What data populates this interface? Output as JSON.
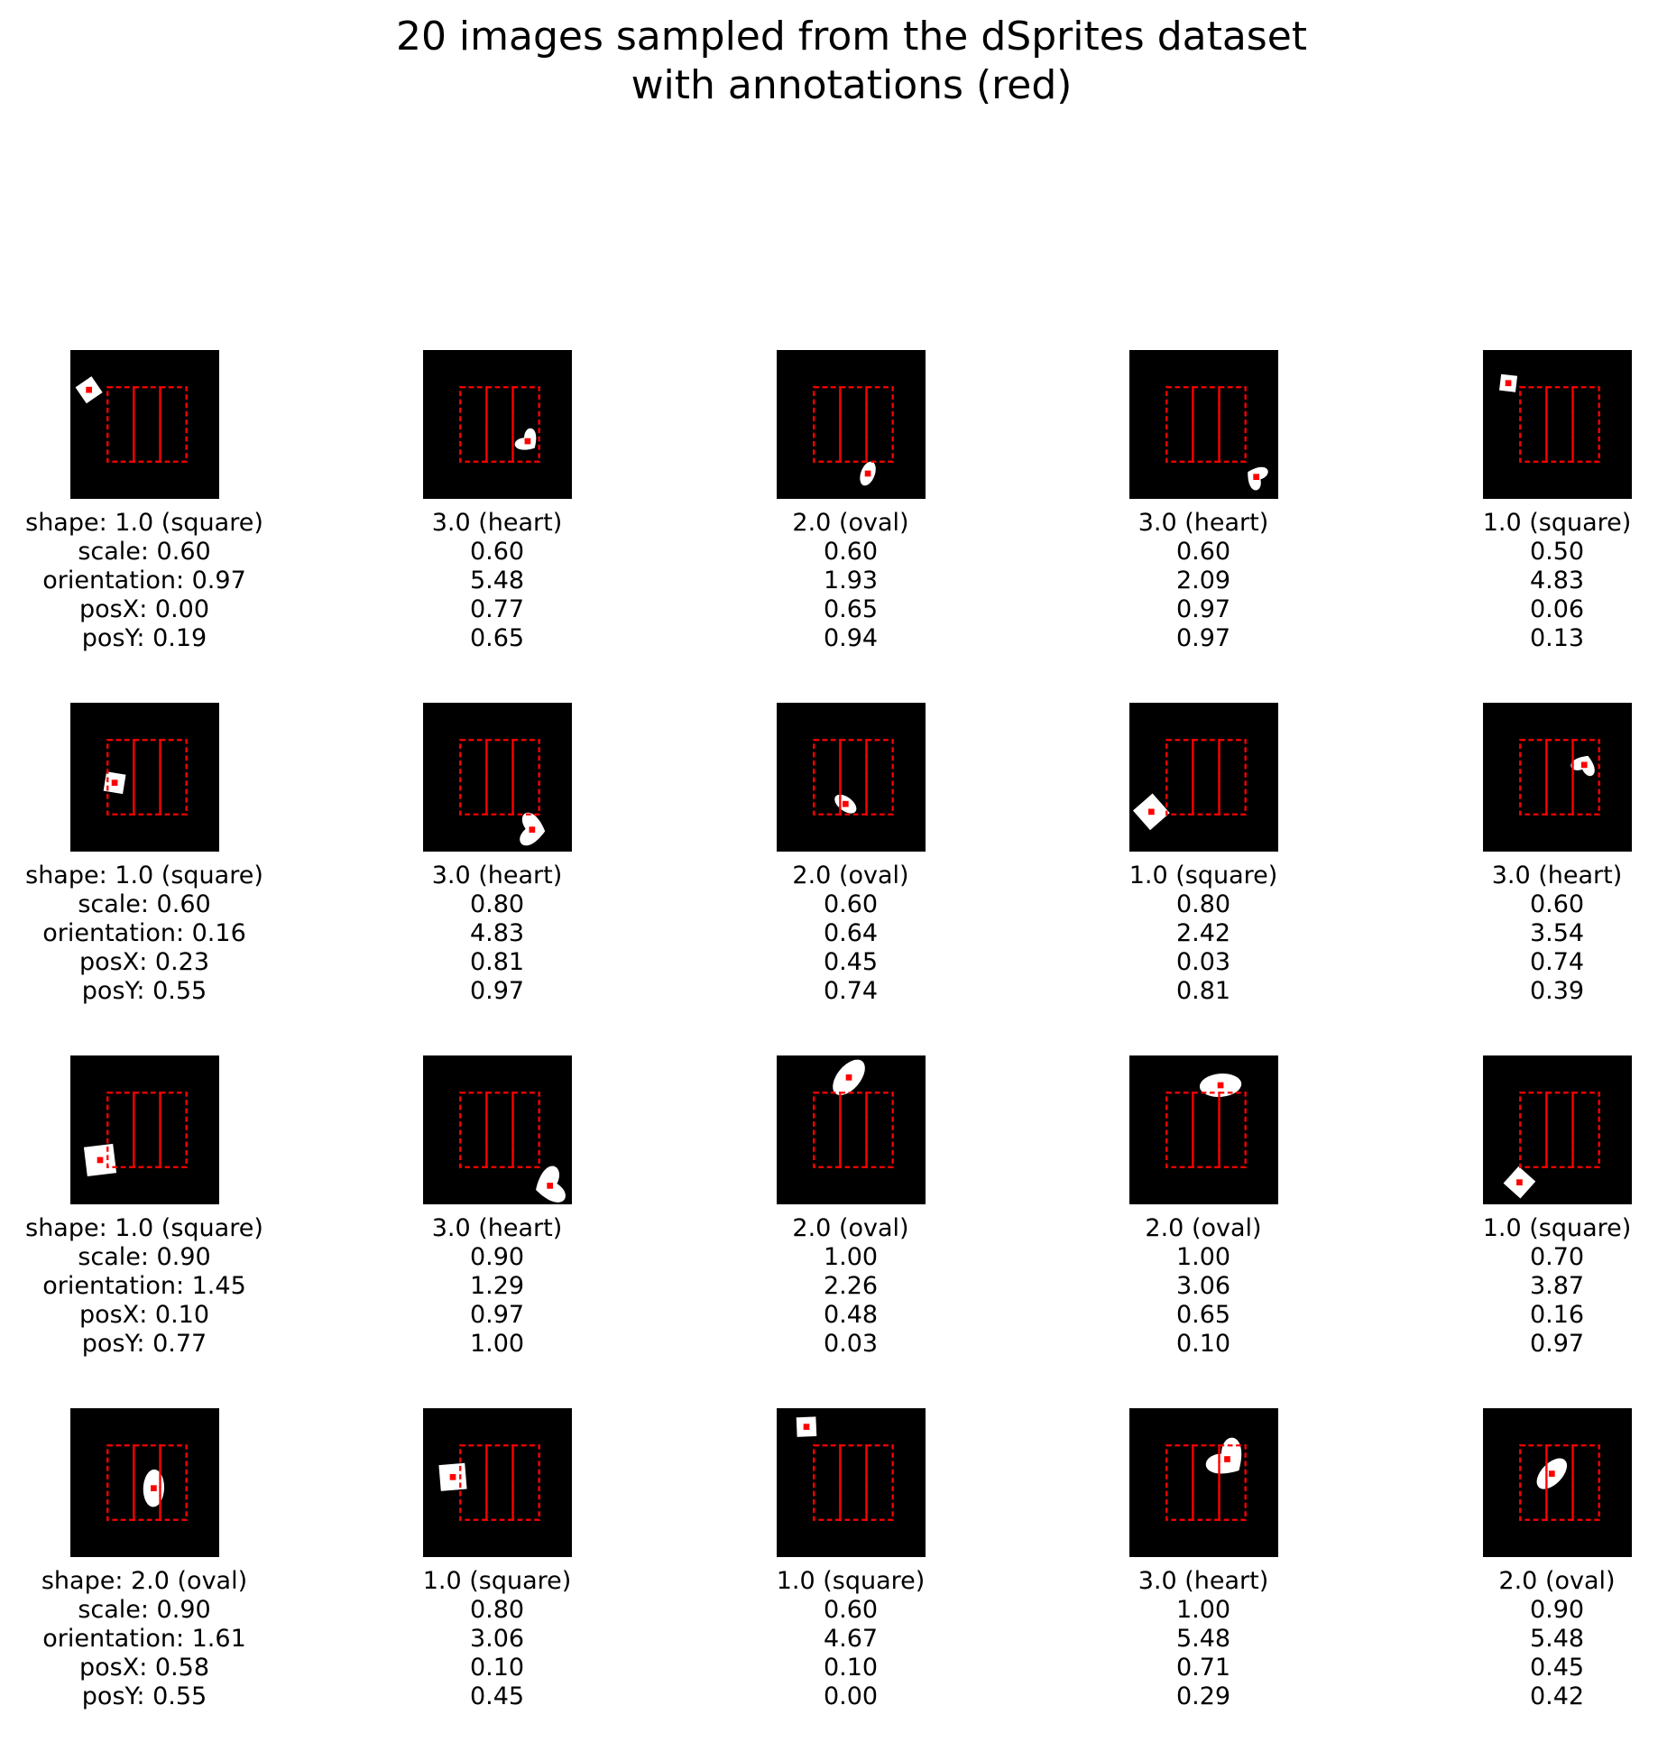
{
  "title": {
    "line1": "20 images sampled from the dSprites dataset",
    "line2": "with annotations (red)"
  },
  "colors": {
    "background": "#ffffff",
    "sprite_canvas": "#000000",
    "sprite": "#ffffff",
    "annotation": "#ff0000"
  },
  "samples": [
    {
      "shape_label": "shape: 1.0 (square)",
      "scale_label": "scale: 0.60",
      "orientation_label": "orientation: 0.97",
      "posx_label": "posX: 0.00",
      "posy_label": "posY: 0.19",
      "shape_id": 1.0,
      "shape_name": "square",
      "scale": 0.6,
      "orientation": 0.97,
      "posX": 0.0,
      "posY": 0.19
    },
    {
      "shape_label": "3.0 (heart)",
      "scale_label": "0.60",
      "orientation_label": "5.48",
      "posx_label": "0.77",
      "posy_label": "0.65",
      "shape_id": 3.0,
      "shape_name": "heart",
      "scale": 0.6,
      "orientation": 5.48,
      "posX": 0.77,
      "posY": 0.65
    },
    {
      "shape_label": "2.0 (oval)",
      "scale_label": "0.60",
      "orientation_label": "1.93",
      "posx_label": "0.65",
      "posy_label": "0.94",
      "shape_id": 2.0,
      "shape_name": "oval",
      "scale": 0.6,
      "orientation": 1.93,
      "posX": 0.65,
      "posY": 0.94
    },
    {
      "shape_label": "3.0 (heart)",
      "scale_label": "0.60",
      "orientation_label": "2.09",
      "posx_label": "0.97",
      "posy_label": "0.97",
      "shape_id": 3.0,
      "shape_name": "heart",
      "scale": 0.6,
      "orientation": 2.09,
      "posX": 0.97,
      "posY": 0.97
    },
    {
      "shape_label": "1.0 (square)",
      "scale_label": "0.50",
      "orientation_label": "4.83",
      "posx_label": "0.06",
      "posy_label": "0.13",
      "shape_id": 1.0,
      "shape_name": "square",
      "scale": 0.5,
      "orientation": 4.83,
      "posX": 0.06,
      "posY": 0.13
    },
    {
      "shape_label": "shape: 1.0 (square)",
      "scale_label": "scale: 0.60",
      "orientation_label": "orientation: 0.16",
      "posx_label": "posX: 0.23",
      "posy_label": "posY: 0.55",
      "shape_id": 1.0,
      "shape_name": "square",
      "scale": 0.6,
      "orientation": 0.16,
      "posX": 0.23,
      "posY": 0.55
    },
    {
      "shape_label": "3.0 (heart)",
      "scale_label": "0.80",
      "orientation_label": "4.83",
      "posx_label": "0.81",
      "posy_label": "0.97",
      "shape_id": 3.0,
      "shape_name": "heart",
      "scale": 0.8,
      "orientation": 4.83,
      "posX": 0.81,
      "posY": 0.97
    },
    {
      "shape_label": "2.0 (oval)",
      "scale_label": "0.60",
      "orientation_label": "0.64",
      "posx_label": "0.45",
      "posy_label": "0.74",
      "shape_id": 2.0,
      "shape_name": "oval",
      "scale": 0.6,
      "orientation": 0.64,
      "posX": 0.45,
      "posY": 0.74
    },
    {
      "shape_label": "1.0 (square)",
      "scale_label": "0.80",
      "orientation_label": "2.42",
      "posx_label": "0.03",
      "posy_label": "0.81",
      "shape_id": 1.0,
      "shape_name": "square",
      "scale": 0.8,
      "orientation": 2.42,
      "posX": 0.03,
      "posY": 0.81
    },
    {
      "shape_label": "3.0 (heart)",
      "scale_label": "0.60",
      "orientation_label": "3.54",
      "posx_label": "0.74",
      "posy_label": "0.39",
      "shape_id": 3.0,
      "shape_name": "heart",
      "scale": 0.6,
      "orientation": 3.54,
      "posX": 0.74,
      "posY": 0.39
    },
    {
      "shape_label": "shape: 1.0 (square)",
      "scale_label": "scale: 0.90",
      "orientation_label": "orientation: 1.45",
      "posx_label": "posX: 0.10",
      "posy_label": "posY: 0.77",
      "shape_id": 1.0,
      "shape_name": "square",
      "scale": 0.9,
      "orientation": 1.45,
      "posX": 0.1,
      "posY": 0.77
    },
    {
      "shape_label": "3.0 (heart)",
      "scale_label": "0.90",
      "orientation_label": "1.29",
      "posx_label": "0.97",
      "posy_label": "1.00",
      "shape_id": 3.0,
      "shape_name": "heart",
      "scale": 0.9,
      "orientation": 1.29,
      "posX": 0.97,
      "posY": 1.0
    },
    {
      "shape_label": "2.0 (oval)",
      "scale_label": "1.00",
      "orientation_label": "2.26",
      "posx_label": "0.48",
      "posy_label": "0.03",
      "shape_id": 2.0,
      "shape_name": "oval",
      "scale": 1.0,
      "orientation": 2.26,
      "posX": 0.48,
      "posY": 0.03
    },
    {
      "shape_label": "2.0 (oval)",
      "scale_label": "1.00",
      "orientation_label": "3.06",
      "posx_label": "0.65",
      "posy_label": "0.10",
      "shape_id": 2.0,
      "shape_name": "oval",
      "scale": 1.0,
      "orientation": 3.06,
      "posX": 0.65,
      "posY": 0.1
    },
    {
      "shape_label": "1.0 (square)",
      "scale_label": "0.70",
      "orientation_label": "3.87",
      "posx_label": "0.16",
      "posy_label": "0.97",
      "shape_id": 1.0,
      "shape_name": "square",
      "scale": 0.7,
      "orientation": 3.87,
      "posX": 0.16,
      "posY": 0.97
    },
    {
      "shape_label": "shape: 2.0 (oval)",
      "scale_label": "scale: 0.90",
      "orientation_label": "orientation: 1.61",
      "posx_label": "posX: 0.58",
      "posy_label": "posY: 0.55",
      "shape_id": 2.0,
      "shape_name": "oval",
      "scale": 0.9,
      "orientation": 1.61,
      "posX": 0.58,
      "posY": 0.55
    },
    {
      "shape_label": "1.0 (square)",
      "scale_label": "0.80",
      "orientation_label": "3.06",
      "posx_label": "0.10",
      "posy_label": "0.45",
      "shape_id": 1.0,
      "shape_name": "square",
      "scale": 0.8,
      "orientation": 3.06,
      "posX": 0.1,
      "posY": 0.45
    },
    {
      "shape_label": "1.0 (square)",
      "scale_label": "0.60",
      "orientation_label": "4.67",
      "posx_label": "0.10",
      "posy_label": "0.00",
      "shape_id": 1.0,
      "shape_name": "square",
      "scale": 0.6,
      "orientation": 4.67,
      "posX": 0.1,
      "posY": 0.0
    },
    {
      "shape_label": "3.0 (heart)",
      "scale_label": "1.00",
      "orientation_label": "5.48",
      "posx_label": "0.71",
      "posy_label": "0.29",
      "shape_id": 3.0,
      "shape_name": "heart",
      "scale": 1.0,
      "orientation": 5.48,
      "posX": 0.71,
      "posY": 0.29
    },
    {
      "shape_label": "2.0 (oval)",
      "scale_label": "0.90",
      "orientation_label": "5.48",
      "posx_label": "0.45",
      "posy_label": "0.42",
      "shape_id": 2.0,
      "shape_name": "oval",
      "scale": 0.9,
      "orientation": 5.48,
      "posX": 0.45,
      "posY": 0.42
    }
  ]
}
